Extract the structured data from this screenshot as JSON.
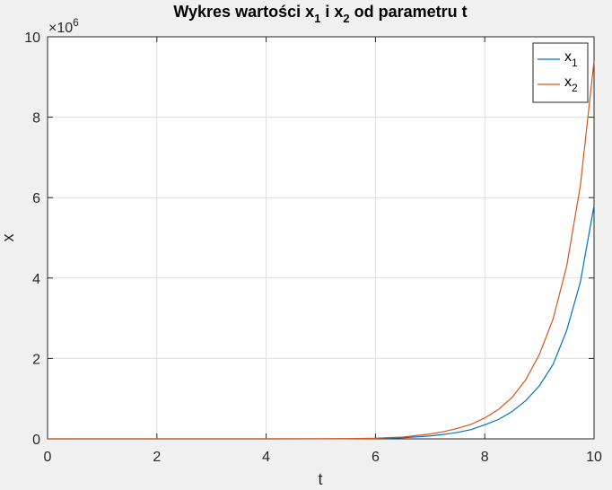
{
  "chart_data": {
    "type": "line",
    "title_parts": [
      "Wykres wartości x",
      "1",
      " i x",
      "2",
      " od parametru t"
    ],
    "xlabel": "t",
    "ylabel": "x",
    "xlim": [
      0,
      10
    ],
    "ylim": [
      0,
      10
    ],
    "y_exponent_base": "×10",
    "y_exponent": "6",
    "xticks": [
      "0",
      "2",
      "4",
      "6",
      "8",
      "10"
    ],
    "yticks": [
      "0",
      "2",
      "4",
      "6",
      "8",
      "10"
    ],
    "grid": true,
    "legend_location": "top-right",
    "x": [
      0,
      1,
      2,
      3,
      4,
      5,
      5.5,
      6,
      6.5,
      7,
      7.25,
      7.5,
      7.75,
      8,
      8.25,
      8.5,
      8.75,
      9,
      9.25,
      9.5,
      9.75,
      10
    ],
    "series": [
      {
        "name": "x",
        "sub": "1",
        "color": "#0072bd",
        "values": [
          0,
          0,
          0,
          0.0001,
          0.0004,
          0.0015,
          0.004,
          0.01,
          0.027,
          0.072,
          0.11,
          0.16,
          0.23,
          0.35,
          0.48,
          0.68,
          0.95,
          1.32,
          1.85,
          2.7,
          3.9,
          5.8
        ]
      },
      {
        "name": "x",
        "sub": "2",
        "color": "#d95319",
        "values": [
          0,
          0,
          0,
          0.0002,
          0.0006,
          0.0023,
          0.006,
          0.017,
          0.045,
          0.12,
          0.18,
          0.26,
          0.36,
          0.52,
          0.73,
          1.03,
          1.47,
          2.1,
          2.98,
          4.3,
          6.3,
          9.4
        ]
      }
    ]
  }
}
